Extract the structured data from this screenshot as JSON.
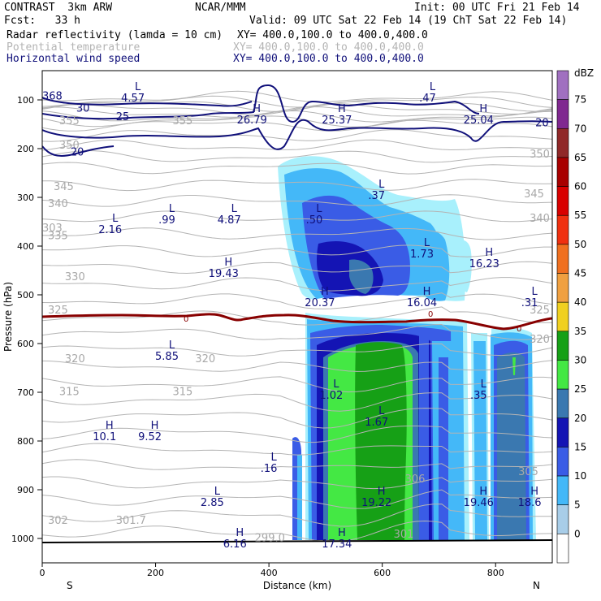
{
  "header": {
    "model": "CONTRAST",
    "run": "3km ARW",
    "org": "NCAR/MMM",
    "init": "Init: 00 UTC Fri 21 Feb 14",
    "fcst": "Fcst:   33 h",
    "valid": "Valid: 09 UTC Sat 22 Feb 14 (19 ChT Sat 22 Feb 14)",
    "fields": [
      {
        "name": "Radar reflectivity (lamda = 10 cm)",
        "xy": "XY= 400.0,100.0 to 400.0,400.0",
        "color": "#000000"
      },
      {
        "name": "Potential temperature",
        "xy": "XY= 400.0,100.0 to 400.0,400.0",
        "color": "#b4b4b4"
      },
      {
        "name": "Horizontal wind speed",
        "xy": "XY= 400.0,100.0 to 400.0,400.0",
        "color": "#10107a"
      }
    ]
  },
  "chart_data": {
    "type": "cross-section",
    "xlabel": "Distance (km)",
    "ylabel": "Pressure (hPa)",
    "xlim": [
      0,
      900
    ],
    "ylim": [
      1050,
      40
    ],
    "xticks": [
      "0",
      "200",
      "400",
      "600",
      "800"
    ],
    "yticks": [
      "100",
      "200",
      "300",
      "400",
      "500",
      "600",
      "700",
      "800",
      "900",
      "1000"
    ],
    "xend_left": "S",
    "xend_right": "N",
    "colorbar": {
      "unit": "dBZ",
      "labels": [
        "75",
        "70",
        "65",
        "60",
        "55",
        "50",
        "45",
        "40",
        "35",
        "30",
        "25",
        "20",
        "15",
        "10",
        "5",
        "0"
      ],
      "colors": [
        "#ffffff",
        "#a8cde8",
        "#44b8f8",
        "#3a5ce6",
        "#1414b4",
        "#3a78b0",
        "#44e844",
        "#16a016",
        "#f0d020",
        "#f0a040",
        "#f07020",
        "#f03010",
        "#d80000",
        "#a80000",
        "#902828",
        "#802890",
        "#a070c0"
      ],
      "labels_values": [
        75,
        70,
        65,
        60,
        55,
        50,
        45,
        40,
        35,
        30,
        25,
        20,
        15,
        10,
        5,
        0
      ]
    },
    "freezing_label": "0",
    "theta_labels": [
      {
        "text": "355",
        "x": 30,
        "p": 150
      },
      {
        "text": "355",
        "x": 230,
        "p": 150
      },
      {
        "text": "350",
        "x": 30,
        "p": 200
      },
      {
        "text": "350",
        "x": 860,
        "p": 218
      },
      {
        "text": "345",
        "x": 20,
        "p": 285
      },
      {
        "text": "345",
        "x": 850,
        "p": 300
      },
      {
        "text": "340",
        "x": 10,
        "p": 320
      },
      {
        "text": "340",
        "x": 860,
        "p": 350
      },
      {
        "text": "335",
        "x": 10,
        "p": 386
      },
      {
        "text": "330",
        "x": 40,
        "p": 470
      },
      {
        "text": "325",
        "x": 10,
        "p": 538
      },
      {
        "text": "325",
        "x": 860,
        "p": 538
      },
      {
        "text": "320",
        "x": 40,
        "p": 638
      },
      {
        "text": "320",
        "x": 270,
        "p": 638
      },
      {
        "text": "320",
        "x": 860,
        "p": 598
      },
      {
        "text": "315",
        "x": 30,
        "p": 706
      },
      {
        "text": "315",
        "x": 230,
        "p": 706
      },
      {
        "text": "306",
        "x": 640,
        "p": 885
      },
      {
        "text": "305",
        "x": 840,
        "p": 870
      },
      {
        "text": "302",
        "x": 10,
        "p": 970
      },
      {
        "text": "301.7",
        "x": 130,
        "p": 970
      },
      {
        "text": "301",
        "x": 620,
        "p": 998
      },
      {
        "text": "299.0",
        "x": 375,
        "p": 1006
      },
      {
        "text": "303",
        "x": 0,
        "p": 370
      }
    ],
    "wind_labels": [
      {
        "text": "30",
        "x": 60,
        "p": 124
      },
      {
        "text": "25",
        "x": 130,
        "p": 142
      },
      {
        "text": "20",
        "x": 50,
        "p": 214
      },
      {
        "text": "20",
        "x": 870,
        "p": 154
      },
      {
        "text": "368",
        "x": 0,
        "p": 99
      }
    ],
    "extrema": [
      {
        "kind": "L",
        "value": "4.57",
        "x": 160,
        "p": 80
      },
      {
        "kind": "L",
        "value": ".47",
        "x": 680,
        "p": 80
      },
      {
        "kind": "H",
        "value": "26.79",
        "x": 370,
        "p": 125
      },
      {
        "kind": "H",
        "value": "25.37",
        "x": 520,
        "p": 125
      },
      {
        "kind": "H",
        "value": "25.04",
        "x": 770,
        "p": 125
      },
      {
        "kind": "L",
        "value": ".37",
        "x": 590,
        "p": 280
      },
      {
        "kind": "L",
        "value": ".99",
        "x": 220,
        "p": 330
      },
      {
        "kind": "L",
        "value": "4.87",
        "x": 330,
        "p": 330
      },
      {
        "kind": "L",
        "value": ".50",
        "x": 480,
        "p": 330
      },
      {
        "kind": "L",
        "value": "2.16",
        "x": 120,
        "p": 350
      },
      {
        "kind": "L",
        "value": "1.73",
        "x": 670,
        "p": 400
      },
      {
        "kind": "H",
        "value": "16.23",
        "x": 780,
        "p": 420
      },
      {
        "kind": "H",
        "value": "19.43",
        "x": 320,
        "p": 440
      },
      {
        "kind": "H",
        "value": "20.37",
        "x": 490,
        "p": 500
      },
      {
        "kind": "H",
        "value": "16.04",
        "x": 670,
        "p": 500
      },
      {
        "kind": "L",
        "value": ".31",
        "x": 860,
        "p": 500
      },
      {
        "kind": "L",
        "value": "5.85",
        "x": 220,
        "p": 610
      },
      {
        "kind": "L",
        "value": "1.02",
        "x": 510,
        "p": 690
      },
      {
        "kind": "L",
        "value": ".35",
        "x": 770,
        "p": 690
      },
      {
        "kind": "L",
        "value": "1.67",
        "x": 590,
        "p": 745
      },
      {
        "kind": "H",
        "value": "10.1",
        "x": 110,
        "p": 775
      },
      {
        "kind": "H",
        "value": "9.52",
        "x": 190,
        "p": 775
      },
      {
        "kind": "L",
        "value": ".16",
        "x": 400,
        "p": 840
      },
      {
        "kind": "L",
        "value": "2.85",
        "x": 300,
        "p": 910
      },
      {
        "kind": "H",
        "value": "19.22",
        "x": 590,
        "p": 910
      },
      {
        "kind": "H",
        "value": "19.46",
        "x": 770,
        "p": 910
      },
      {
        "kind": "H",
        "value": "18.6",
        "x": 860,
        "p": 910
      },
      {
        "kind": "H",
        "value": "6.16",
        "x": 340,
        "p": 995
      },
      {
        "kind": "H",
        "value": "17.34",
        "x": 520,
        "p": 995
      }
    ]
  }
}
